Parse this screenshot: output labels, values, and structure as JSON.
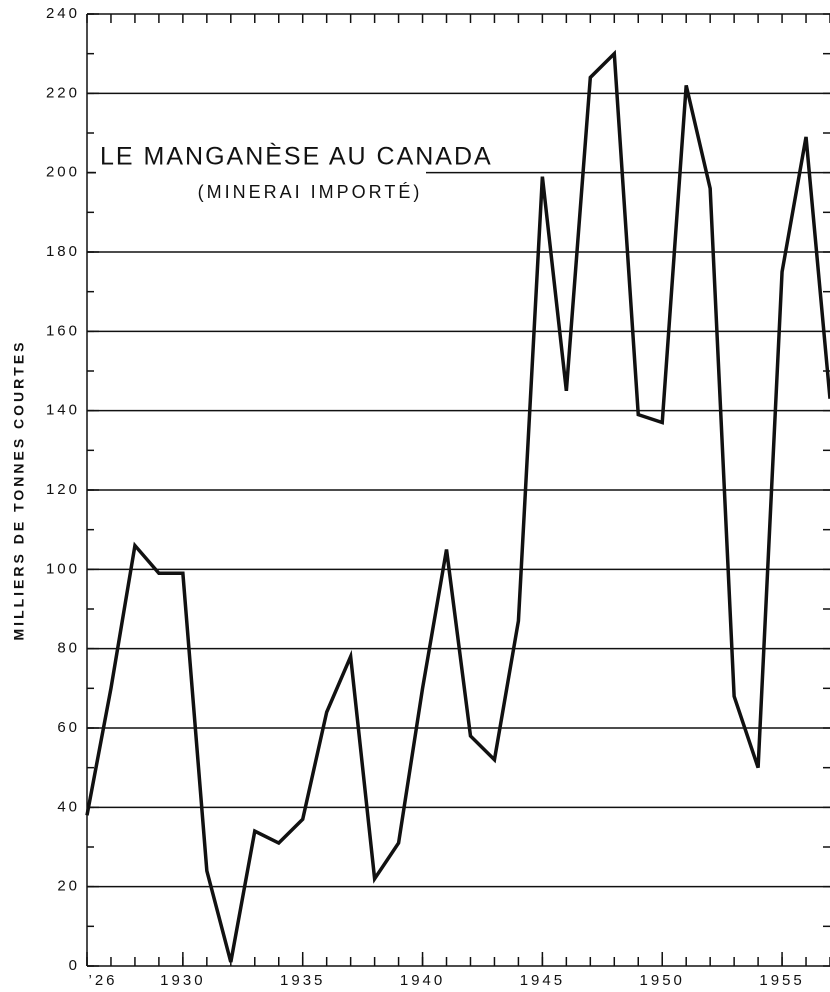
{
  "chart_data": {
    "type": "line",
    "title": "LE MANGANÈSE AU CANADA",
    "subtitle": "(MINERAI IMPORTÉ)",
    "y_label": "MILLIERS DE TONNES COURTES",
    "x": [
      1926,
      1927,
      1928,
      1929,
      1930,
      1931,
      1932,
      1933,
      1934,
      1935,
      1936,
      1937,
      1938,
      1939,
      1940,
      1941,
      1942,
      1943,
      1944,
      1945,
      1946,
      1947,
      1948,
      1949,
      1950,
      1951,
      1952,
      1953,
      1954,
      1955,
      1956,
      1957
    ],
    "series": [
      {
        "color": "#111111",
        "values": [
          38,
          70,
          106,
          99,
          99,
          24,
          1,
          34,
          31,
          37,
          64,
          78,
          22,
          31,
          70,
          105,
          58,
          52,
          87,
          199,
          145,
          224,
          230,
          139,
          137,
          222,
          196,
          68,
          50,
          175,
          209,
          143
        ]
      }
    ],
    "xlim": [
      1926,
      1957
    ],
    "xticks": [
      {
        "value": 1926,
        "label": "’26"
      },
      1930,
      1935,
      1940,
      1945,
      1950,
      1955
    ],
    "ylim": [
      0,
      240
    ],
    "yticks": [
      0,
      20,
      40,
      60,
      80,
      100,
      120,
      140,
      160,
      180,
      200,
      220,
      240
    ],
    "grid": true
  }
}
